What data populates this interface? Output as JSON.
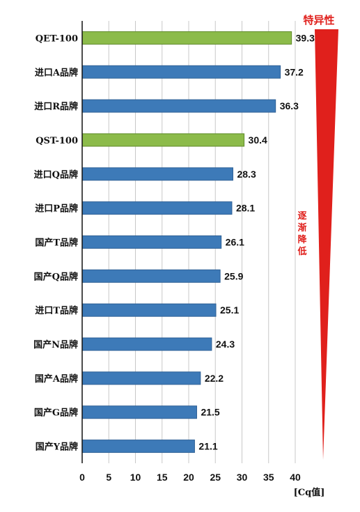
{
  "chart_data": {
    "type": "bar",
    "orientation": "horizontal",
    "categories": [
      "QET-100",
      "进口A品牌",
      "进口R品牌",
      "QST-100",
      "进口Q品牌",
      "进口P品牌",
      "国产T品牌",
      "国产Q品牌",
      "进口T品牌",
      "国产N品牌",
      "国产A品牌",
      "国产G品牌",
      "国产Y品牌"
    ],
    "values": [
      39.3,
      37.2,
      36.3,
      30.4,
      28.3,
      28.1,
      26.1,
      25.9,
      25.1,
      24.3,
      22.2,
      21.5,
      21.1
    ],
    "value_labels": [
      "39.3",
      "37.2",
      "36.3",
      "30.4",
      "28.3",
      "28.1",
      "26.1",
      "25.9",
      "25.1",
      "24.3",
      "22.2",
      "21.5",
      "21.1"
    ],
    "highlighted": [
      true,
      false,
      false,
      true,
      false,
      false,
      false,
      false,
      false,
      false,
      false,
      false,
      false
    ],
    "xlim": [
      0,
      40
    ],
    "xticks": [
      "0",
      "5",
      "10",
      "15",
      "20",
      "25",
      "30",
      "35",
      "40"
    ],
    "xlabel": "[Cq值]",
    "grid": true,
    "colors": {
      "default": "#3d7ab8",
      "highlight": "#8cbb4a",
      "annotation": "#e0201c"
    }
  },
  "annotation": {
    "title": "特异性",
    "note_chars": [
      "逐",
      "渐",
      "降",
      "低"
    ]
  }
}
